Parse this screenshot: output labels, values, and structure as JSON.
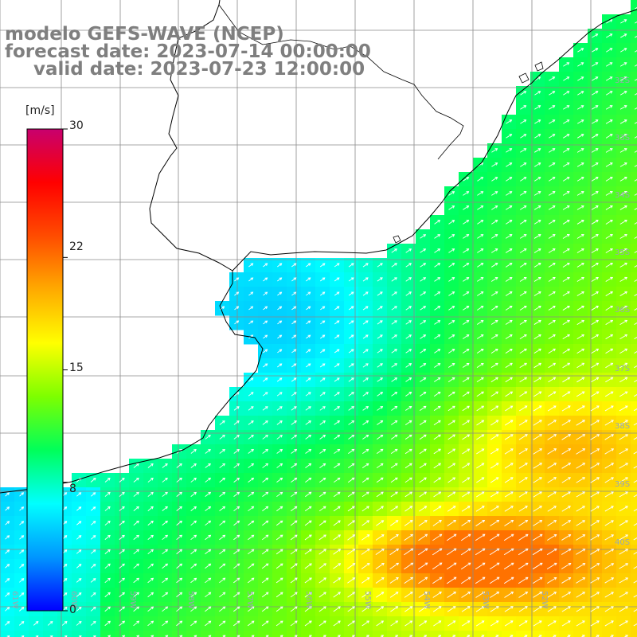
{
  "title": {
    "line1": "modelo GEFS-WAVE (NCEP)",
    "line2": "forecast date: 2023-07-14 00:00:00",
    "line3": "valid date: 2023-07-23 12:00:00"
  },
  "colorbar": {
    "unit": "[m/s]",
    "ticks": [
      "30",
      "22",
      "15",
      "8",
      "0"
    ],
    "tick_values": [
      30,
      22,
      15,
      8,
      0
    ],
    "min": 0,
    "max": 30,
    "colors": [
      "#0000ff",
      "#0096ff",
      "#00ffff",
      "#00ff5a",
      "#7dff00",
      "#ffff00",
      "#ffaa00",
      "#ff4c00",
      "#ff0000",
      "#c8006e"
    ]
  },
  "grid": {
    "lat_labels": [
      "32S",
      "33S",
      "34S",
      "35S",
      "36S",
      "37S",
      "38S",
      "39S",
      "40S"
    ],
    "lon_labels": [
      "61W",
      "60W",
      "59W",
      "58W",
      "57W",
      "56W",
      "55W",
      "54W",
      "53W",
      "52W"
    ]
  },
  "field": {
    "variable": "wind speed",
    "units": "m/s",
    "peak_value": 21,
    "peak_location": "around 39.8S 54W",
    "arrow_direction": "toward northeast"
  }
}
